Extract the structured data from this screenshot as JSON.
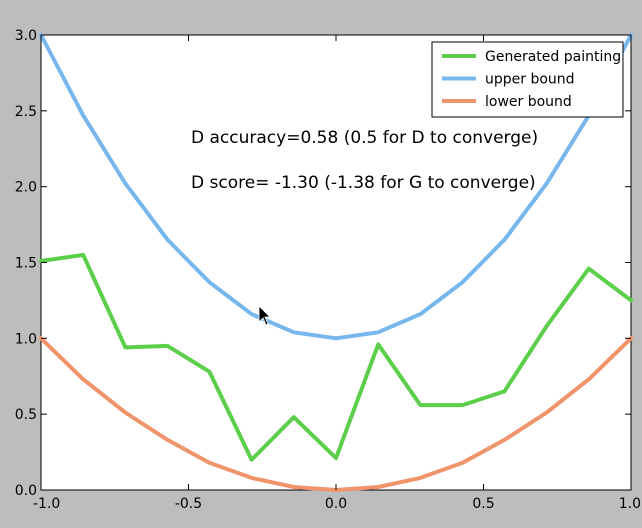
{
  "chart_data": {
    "type": "line",
    "xlim": [
      -1.0,
      1.0
    ],
    "ylim": [
      0.0,
      3.0
    ],
    "xticks": [
      -1.0,
      -0.5,
      0.0,
      0.5,
      1.0
    ],
    "xtick_labels": [
      "-1.0",
      "-0.5",
      "0.0",
      "0.5",
      "1.0"
    ],
    "yticks": [
      0.0,
      0.5,
      1.0,
      1.5,
      2.0,
      2.5,
      3.0
    ],
    "ytick_labels": [
      "0.0",
      "0.5",
      "1.0",
      "1.5",
      "2.0",
      "2.5",
      "3.0"
    ],
    "grid": false,
    "legend_position": "upper-right",
    "x": [
      -1.0,
      -0.857,
      -0.714,
      -0.571,
      -0.429,
      -0.286,
      -0.143,
      0.0,
      0.143,
      0.286,
      0.429,
      0.571,
      0.714,
      0.857,
      1.0
    ],
    "series": [
      {
        "name": "Generated painting",
        "color": "#5ccf4a",
        "values": [
          1.51,
          1.55,
          0.94,
          0.95,
          0.78,
          0.2,
          0.48,
          0.21,
          0.96,
          0.56,
          0.56,
          0.65,
          1.08,
          1.46,
          1.25
        ]
      },
      {
        "name": "upper bound",
        "color": "#77b7ee",
        "values": [
          3.0,
          2.47,
          2.02,
          1.65,
          1.37,
          1.16,
          1.04,
          1.0,
          1.04,
          1.16,
          1.37,
          1.65,
          2.02,
          2.47,
          3.0
        ]
      },
      {
        "name": "lower bound",
        "color": "#f0946b",
        "values": [
          1.0,
          0.73,
          0.51,
          0.33,
          0.18,
          0.08,
          0.02,
          0.0,
          0.02,
          0.08,
          0.18,
          0.33,
          0.51,
          0.73,
          1.0
        ]
      }
    ],
    "annotations": [
      "D accuracy=0.58 (0.5 for D to converge)",
      "D score= -1.30 (-1.38 for G to converge)"
    ]
  }
}
